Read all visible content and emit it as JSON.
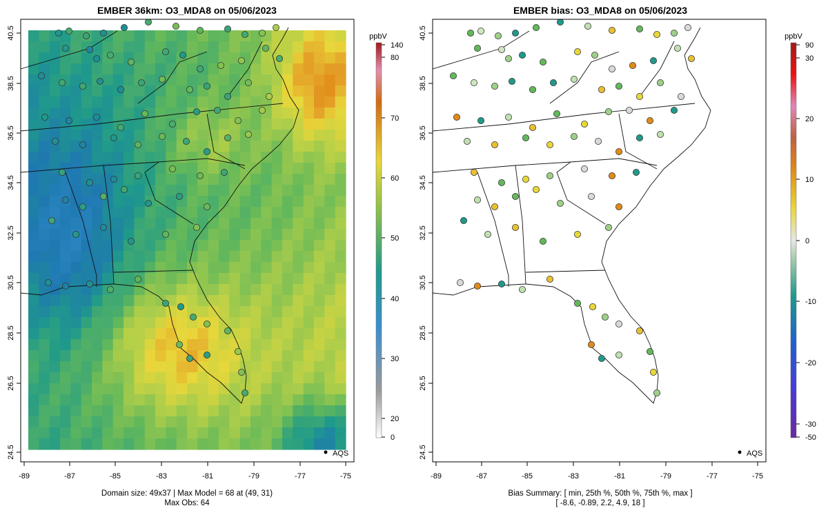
{
  "panels": [
    {
      "title": "EMBER 36km: O3_MDA8 on 05/06/2023",
      "footer_line1": "Domain size: 49x37 | Max Model = 68 at (49, 31)",
      "footer_line2": "Max Obs: 64",
      "legend_label": "AQS",
      "colorbar_unit": "ppbV",
      "colorbar_ticks": [
        "140",
        "80",
        "70",
        "60",
        "50",
        "40",
        "30",
        "20",
        "0"
      ],
      "x_ticks": [
        "-89",
        "-87",
        "-85",
        "-83",
        "-81",
        "-79",
        "-77",
        "-75"
      ],
      "y_ticks": [
        "40.5",
        "38.5",
        "36.5",
        "34.5",
        "32.5",
        "30.5",
        "28.5",
        "26.5",
        "24.5"
      ]
    },
    {
      "title": "EMBER bias: O3_MDA8 on 05/06/2023",
      "footer_line1": "Bias Summary: [ min, 25th %, 50th %, 75th %, max ]",
      "footer_line2": "[ -8.6,   -0.89,   2.2,   4.9,   18 ]",
      "legend_label": "AQS",
      "colorbar_unit": "ppbV",
      "colorbar_ticks": [
        "90",
        "30",
        "20",
        "10",
        "0",
        "-10",
        "-20",
        "-30",
        "-50"
      ],
      "x_ticks": [
        "-89",
        "-87",
        "-85",
        "-83",
        "-81",
        "-79",
        "-77",
        "-75"
      ],
      "y_ticks": [
        "40.5",
        "38.5",
        "36.5",
        "34.5",
        "32.5",
        "30.5",
        "28.5",
        "26.5",
        "24.5"
      ]
    }
  ],
  "colors": {
    "blue": "#2f7fc0",
    "teal": "#1f9a8a",
    "green": "#63b85a",
    "yellow": "#e9d73a",
    "orange": "#e08a18",
    "red": "#e01b1b",
    "purple": "#7a2aa8"
  }
}
